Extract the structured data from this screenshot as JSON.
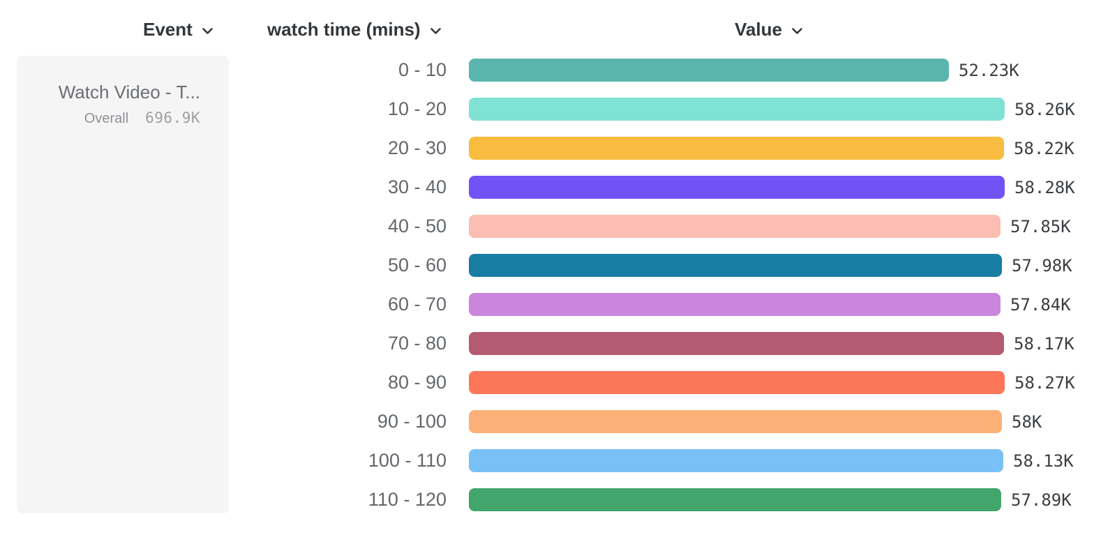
{
  "columns": [
    {
      "id": "event",
      "label": "Event"
    },
    {
      "id": "breakdown",
      "label": "watch time (mins)"
    },
    {
      "id": "value",
      "label": "Value"
    }
  ],
  "icons": {
    "chevron_color": "#33373b"
  },
  "legend": {
    "event_name": "Watch Video - T...",
    "overall_label": "Overall",
    "overall_value": "696.9K"
  },
  "chart_data": {
    "type": "bar",
    "orientation": "horizontal",
    "title": "",
    "xlabel": "Value",
    "ylabel": "watch time (mins)",
    "grid": false,
    "legend_position": "left",
    "xlim": [
      0,
      58280
    ],
    "categories": [
      "0 - 10",
      "10 - 20",
      "20 - 30",
      "30 - 40",
      "40 - 50",
      "50 - 60",
      "60 - 70",
      "70 - 80",
      "80 - 90",
      "90 - 100",
      "100 - 110",
      "110 - 120"
    ],
    "values": [
      52230,
      58260,
      58220,
      58280,
      57850,
      57980,
      57840,
      58170,
      58270,
      58000,
      58130,
      57890
    ],
    "value_labels": [
      "52.23K",
      "58.26K",
      "58.22K",
      "58.28K",
      "57.85K",
      "57.98K",
      "57.84K",
      "58.17K",
      "58.27K",
      "58K",
      "58.13K",
      "57.89K"
    ],
    "bar_colors": [
      "#5ab5ae",
      "#80e2d4",
      "#f7bc40",
      "#7153f5",
      "#fcbdb2",
      "#187da2",
      "#ca85dd",
      "#b45a71",
      "#fc765a",
      "#fcb077",
      "#79c0f7",
      "#41a56c"
    ]
  }
}
